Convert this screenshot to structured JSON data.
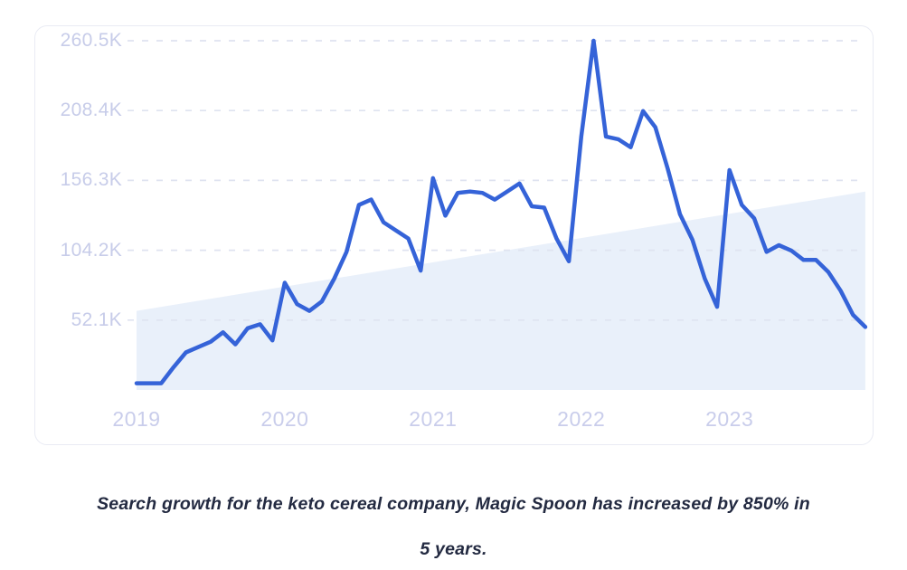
{
  "caption": {
    "lines": [
      "Search growth for the keto cereal company, Magic Spoon has increased by 850% in",
      "5 years."
    ],
    "full_text": "Search growth for the keto cereal company, Magic Spoon has increased by 850% in 5 years."
  },
  "chart_data": {
    "type": "line",
    "title": "",
    "xlabel": "",
    "ylabel": "",
    "value_unit": "K",
    "x_unit": "month",
    "x_range": [
      "2019-01",
      "2023-12"
    ],
    "x_tick_labels": [
      "2019",
      "2020",
      "2021",
      "2022",
      "2023"
    ],
    "y_tick_labels": [
      "260.5K",
      "208.4K",
      "156.3K",
      "104.2K",
      "52.1K"
    ],
    "y_ticks": [
      260.5,
      208.4,
      156.3,
      104.2,
      52.1
    ],
    "ylim": [
      0,
      270
    ],
    "grid": "dashed-horizontal",
    "legend": "none",
    "colors": {
      "line": "#3563d8",
      "trend_area": "#e9f0fa",
      "gridline": "#dfe3f0",
      "axis_text": "#c7cce9"
    },
    "series": [
      {
        "name": "monthly-search-volume",
        "color": "#3563d8",
        "values": [
          5,
          5,
          5,
          17,
          28,
          32,
          36,
          43,
          34,
          46,
          49,
          37,
          80,
          64,
          59,
          66,
          83,
          103,
          138,
          142,
          125,
          119,
          113,
          89,
          158,
          130,
          147,
          148,
          147,
          142,
          148,
          154,
          137,
          136,
          113,
          96,
          189,
          260.5,
          189,
          187,
          181,
          208,
          196,
          165,
          131,
          112,
          83,
          62,
          164,
          138,
          128,
          103,
          108,
          104,
          97,
          97,
          88,
          74,
          56,
          47
        ]
      }
    ],
    "trend_area": {
      "name": "upward-trend-wedge",
      "start_value": 59,
      "end_value": 148,
      "color": "#e9f0fa"
    }
  }
}
